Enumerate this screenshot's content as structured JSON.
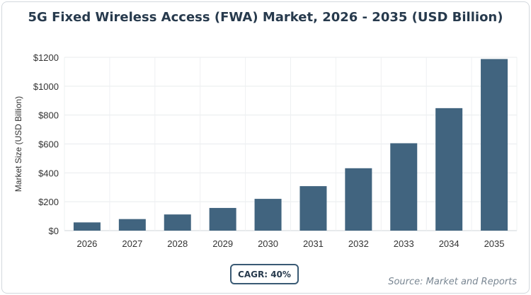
{
  "chart_data": {
    "type": "bar",
    "title": "5G Fixed Wireless Access (FWA) Market, 2026 - 2035 (USD Billion)",
    "xlabel": "",
    "ylabel": "Market Size (USD Billion)",
    "categories": [
      "2026",
      "2027",
      "2028",
      "2029",
      "2030",
      "2031",
      "2032",
      "2033",
      "2034",
      "2035"
    ],
    "values": [
      57,
      80,
      112,
      157,
      220,
      308,
      432,
      605,
      848,
      1188
    ],
    "ylim": [
      0,
      1200
    ],
    "yticks": [
      0,
      200,
      400,
      600,
      800,
      1000,
      1200
    ],
    "ytick_labels": [
      "$0",
      "$200",
      "$400",
      "$600",
      "$800",
      "$1000",
      "$1200"
    ],
    "grid": true,
    "bar_color": "#41647f"
  },
  "cagr_label": "CAGR: 40%",
  "source_label": "Source: Market and Reports"
}
